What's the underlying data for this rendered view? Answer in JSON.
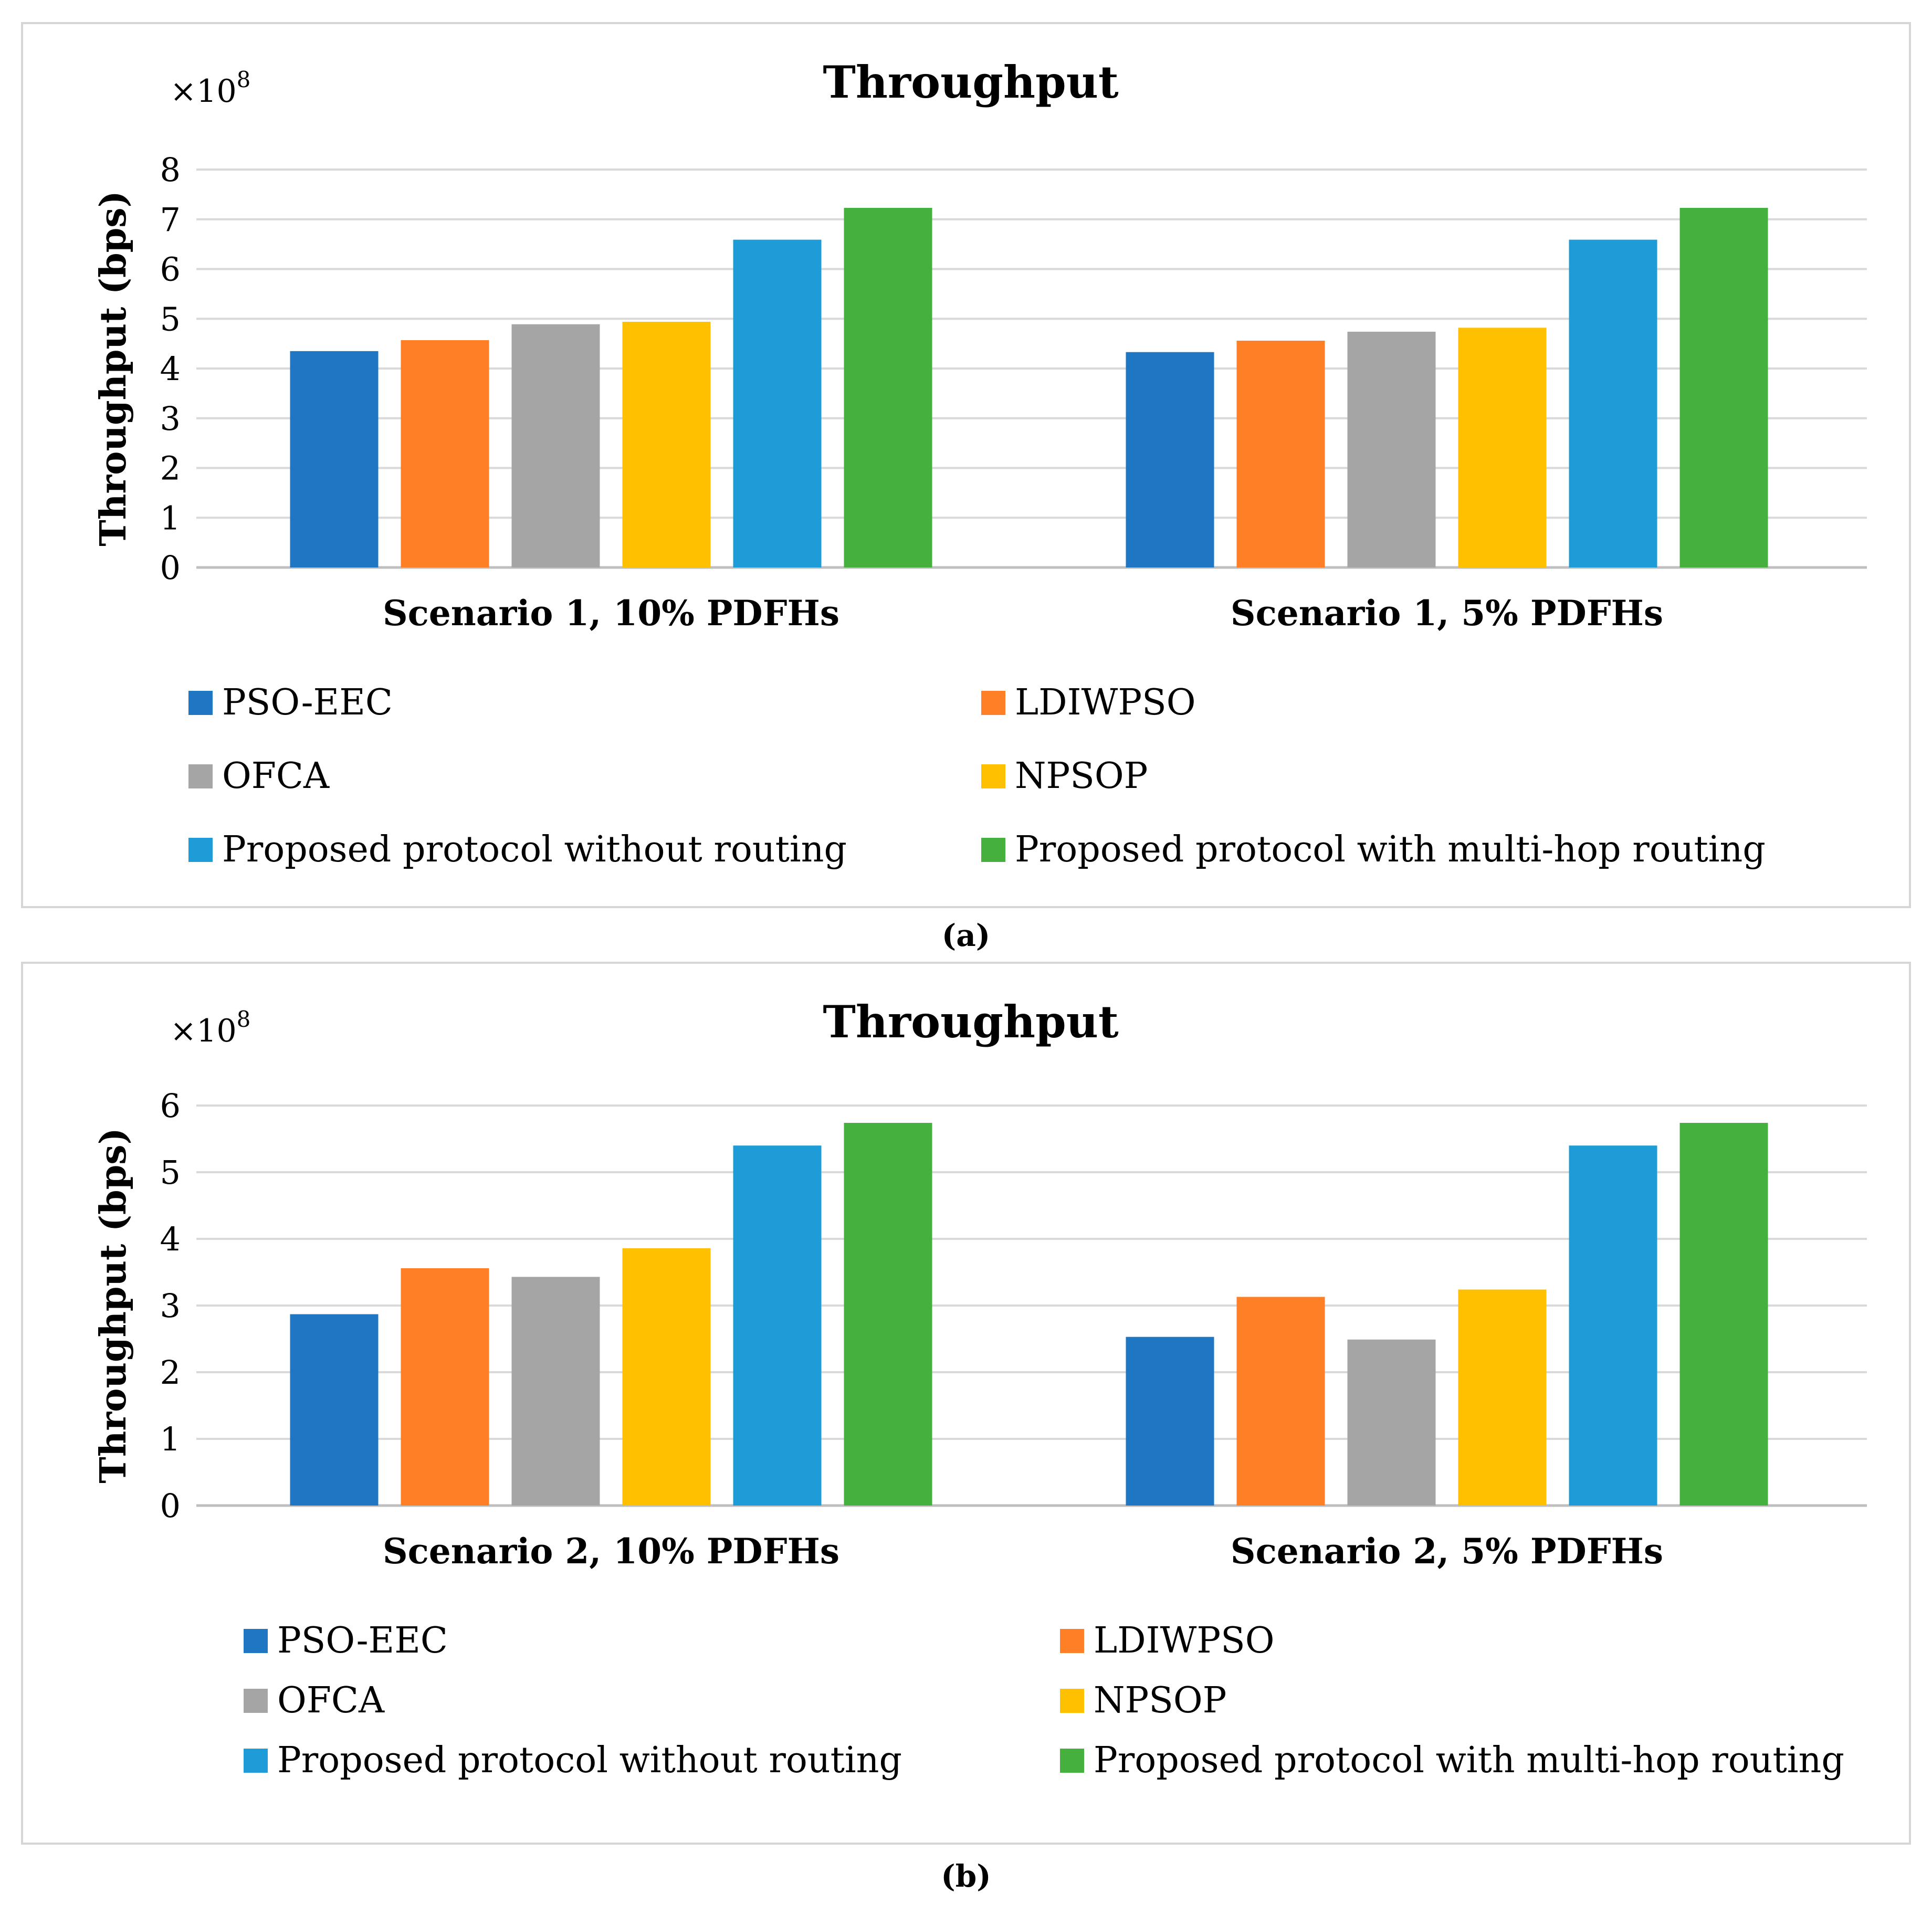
{
  "chart_data": [
    {
      "id": "a",
      "type": "bar",
      "title": "Throughput",
      "exponent_label": "×10",
      "exponent_power": "8",
      "ylabel": "Throughput (bps)",
      "xlabel": "",
      "ylim": [
        0,
        8
      ],
      "yticks": [
        "0",
        "1",
        "2",
        "3",
        "4",
        "5",
        "6",
        "7",
        "8"
      ],
      "grid": true,
      "legend_position": "bottom",
      "categories": [
        "Scenario 1, 10% PDFHs",
        "Scenario 1, 5% PDFHs"
      ],
      "series": [
        {
          "name": "PSO-EEC",
          "color": "#1f77c4",
          "values": [
            4.35,
            4.33
          ]
        },
        {
          "name": "LDIWPSO",
          "color": "#ff7f27",
          "values": [
            4.57,
            4.56
          ]
        },
        {
          "name": "OFCA",
          "color": "#a5a5a5",
          "values": [
            4.89,
            4.74
          ]
        },
        {
          "name": "NPSOP",
          "color": "#ffc000",
          "values": [
            4.94,
            4.82
          ]
        },
        {
          "name": "Proposed protocol without routing",
          "color": "#1e9cd7",
          "values": [
            6.59,
            6.59
          ]
        },
        {
          "name": "Proposed protocol with multi-hop routing",
          "color": "#45b03e",
          "values": [
            7.23,
            7.23
          ]
        }
      ],
      "caption": "(a)"
    },
    {
      "id": "b",
      "type": "bar",
      "title": "Throughput",
      "exponent_label": "×10",
      "exponent_power": "8",
      "ylabel": "Throughput (bps)",
      "xlabel": "",
      "ylim": [
        0,
        6
      ],
      "yticks": [
        "0",
        "1",
        "2",
        "3",
        "4",
        "5",
        "6"
      ],
      "grid": true,
      "legend_position": "bottom",
      "categories": [
        "Scenario 2, 10% PDFHs",
        "Scenario 2, 5% PDFHs"
      ],
      "series": [
        {
          "name": "PSO-EEC",
          "color": "#1f77c4",
          "values": [
            2.87,
            2.53
          ]
        },
        {
          "name": "LDIWPSO",
          "color": "#ff7f27",
          "values": [
            3.56,
            3.13
          ]
        },
        {
          "name": "OFCA",
          "color": "#a5a5a5",
          "values": [
            3.43,
            2.49
          ]
        },
        {
          "name": "NPSOP",
          "color": "#ffc000",
          "values": [
            3.86,
            3.24
          ]
        },
        {
          "name": "Proposed protocol without routing",
          "color": "#1e9cd7",
          "values": [
            5.4,
            5.4
          ]
        },
        {
          "name": "Proposed protocol with multi-hop routing",
          "color": "#45b03e",
          "values": [
            5.74,
            5.74
          ]
        }
      ],
      "caption": "(b)"
    }
  ]
}
